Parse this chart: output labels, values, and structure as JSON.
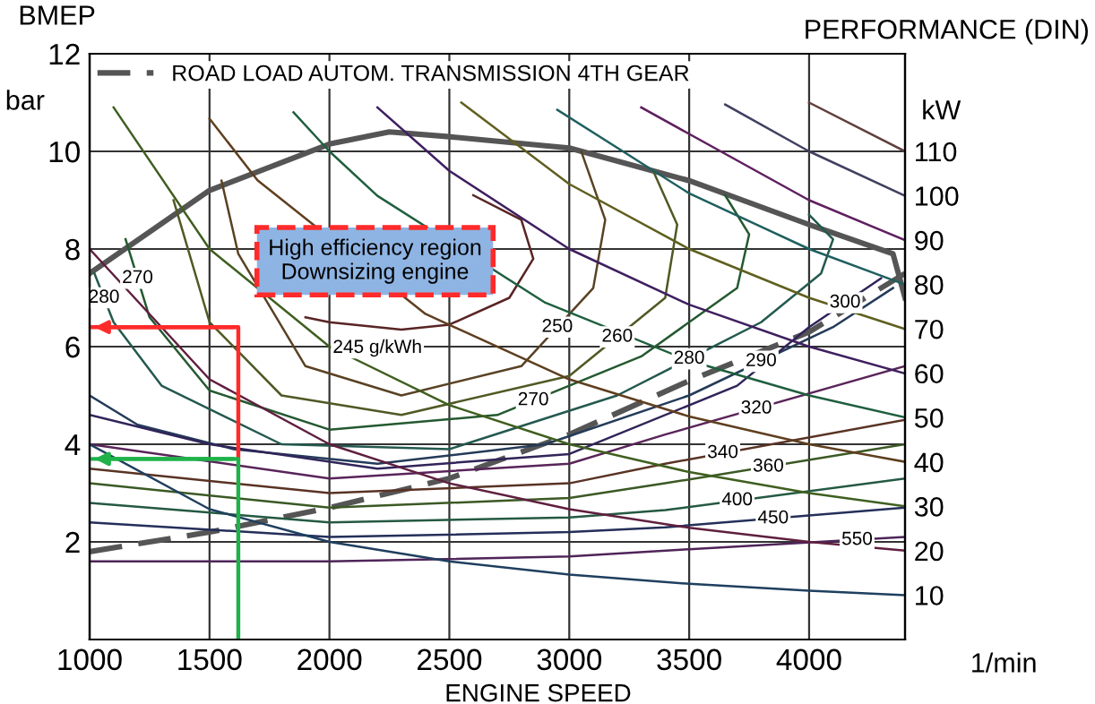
{
  "chart_data": {
    "type": "line",
    "xlabel": "ENGINE SPEED",
    "ylabel": "BMEP",
    "y2label": "PERFORMANCE (DIN)",
    "xlim": [
      1000,
      4400
    ],
    "xticks": [
      1000,
      1500,
      2000,
      2500,
      3000,
      3500,
      4000
    ],
    "ylim": [
      0,
      12
    ],
    "yticks": [
      2,
      4,
      6,
      8,
      10,
      12
    ],
    "y2lim": [
      0,
      132
    ],
    "y2ticks": [
      10,
      20,
      30,
      40,
      50,
      60,
      70,
      80,
      90,
      100,
      110
    ],
    "grid": true,
    "legend": "top left",
    "series": [
      {
        "color": "#555555",
        "x": [
          1000,
          1500,
          2000,
          2250,
          2500,
          3000,
          3500,
          4000,
          4350,
          4400
        ],
        "values": [
          7.5,
          9.2,
          10.15,
          10.4,
          10.3,
          10.07,
          9.4,
          8.5,
          7.9,
          7.0
        ]
      },
      {
        "name": "ROAD LOAD AUTOM. TRANSMISSION 4TH GEAR",
        "color": "#555555",
        "line_style": "dashed",
        "x": [
          1000,
          1500,
          2000,
          2500,
          3000,
          3500,
          4000,
          4400
        ],
        "values": [
          1.8,
          2.2,
          2.7,
          3.3,
          4.2,
          5.3,
          6.3,
          7.5
        ]
      },
      {
        "color": "#592424",
        "x": [
          2600,
          2800,
          2850,
          2750,
          2500,
          2300,
          2000,
          1900
        ],
        "values": [
          9.1,
          8.6,
          7.8,
          7.0,
          6.45,
          6.35,
          6.5,
          6.6
        ]
      },
      {
        "color": "#594224",
        "x": [
          1550,
          1620,
          1900,
          2300,
          2800,
          3100,
          3150,
          3050
        ],
        "values": [
          9.4,
          7.9,
          5.6,
          5.0,
          5.6,
          7.2,
          8.6,
          10.0
        ]
      },
      {
        "color": "#4f5924",
        "x": [
          1350,
          1500,
          1800,
          2300,
          3000,
          3400,
          3450,
          3350
        ],
        "values": [
          9.0,
          6.5,
          5.0,
          4.6,
          5.4,
          7.0,
          8.5,
          9.6
        ]
      },
      {
        "color": "#245930",
        "x": [
          1150,
          1250,
          1500,
          2000,
          2700,
          3300,
          3700,
          3750,
          3650
        ],
        "values": [
          8.2,
          6.6,
          5.1,
          4.3,
          4.6,
          5.8,
          7.2,
          8.3,
          9.1
        ]
      },
      {
        "color": "#24594f",
        "x": [
          1020,
          1100,
          1300,
          1800,
          2500,
          3200,
          3800,
          4050,
          4100,
          4000
        ],
        "values": [
          7.5,
          6.5,
          5.2,
          4.0,
          3.9,
          5.0,
          6.5,
          7.5,
          8.2,
          8.7
        ]
      },
      {
        "color": "#243b59",
        "x": [
          1000,
          1200,
          1600,
          2200,
          2900,
          3500,
          4100,
          4350
        ],
        "values": [
          5.0,
          4.4,
          3.9,
          3.6,
          4.0,
          5.0,
          6.4,
          7.2
        ]
      },
      {
        "color": "#302459",
        "x": [
          1000,
          1500,
          2200,
          3000,
          3700,
          4000,
          4300
        ],
        "values": [
          4.6,
          4.0,
          3.5,
          3.8,
          5.2,
          6.4,
          7.4
        ]
      },
      {
        "color": "#592459",
        "x": [
          1000,
          2000,
          3000,
          3400,
          4400
        ],
        "values": [
          4.0,
          3.3,
          3.6,
          4.2,
          5.6
        ]
      },
      {
        "color": "#593324",
        "x": [
          1000,
          2000,
          3000,
          3400,
          4400
        ],
        "values": [
          3.5,
          3.0,
          3.2,
          3.6,
          4.5
        ]
      },
      {
        "color": "#3b5924",
        "x": [
          1000,
          2000,
          3000,
          3400,
          4400
        ],
        "values": [
          3.2,
          2.7,
          2.9,
          3.2,
          4.0
        ]
      },
      {
        "color": "#245942",
        "x": [
          1000,
          2000,
          3000,
          3400,
          4400
        ],
        "values": [
          2.8,
          2.4,
          2.5,
          2.65,
          3.3
        ]
      },
      {
        "color": "#242f59",
        "x": [
          1000,
          2000,
          3000,
          3400,
          4400
        ],
        "values": [
          2.4,
          2.1,
          2.2,
          2.3,
          2.7
        ]
      },
      {
        "color": "#4f2459",
        "x": [
          1000,
          2000,
          3000,
          3500,
          4400
        ],
        "values": [
          1.6,
          1.6,
          1.7,
          1.85,
          2.1
        ]
      },
      {
        "color": "#1f3f5f",
        "x": [
          1000,
          1500,
          2000,
          2500,
          3000,
          3500,
          4000,
          4400
        ],
        "values": [
          4.0,
          2.67,
          2.0,
          1.6,
          1.33,
          1.14,
          1.0,
          0.91
        ]
      },
      {
        "color": "#5f1f3f",
        "x": [
          1000,
          1500,
          2000,
          2500,
          3000,
          3500,
          4000,
          4400
        ],
        "values": [
          8.0,
          5.33,
          4.0,
          3.2,
          2.67,
          2.29,
          2.0,
          1.82
        ]
      },
      {
        "color": "#3f5f1f",
        "x": [
          1100,
          1500,
          2000,
          2500,
          3000,
          3500,
          4000,
          4400
        ],
        "values": [
          10.9,
          8.0,
          6.0,
          4.8,
          4.0,
          3.43,
          3.0,
          2.73
        ]
      },
      {
        "color": "#5f3f1f",
        "x": [
          1500,
          1700,
          2400,
          3000,
          3500,
          4000,
          4400
        ],
        "values": [
          10.67,
          9.41,
          6.67,
          5.33,
          4.57,
          4.0,
          3.64
        ]
      },
      {
        "color": "#1f5f3f",
        "x": [
          1850,
          2000,
          2200,
          2900,
          3500,
          4000,
          4400
        ],
        "values": [
          10.8,
          10.0,
          9.09,
          6.9,
          5.71,
          5.0,
          4.55
        ]
      },
      {
        "color": "#3f1f5f",
        "x": [
          2200,
          2500,
          3000,
          3500,
          4000,
          4400
        ],
        "values": [
          10.9,
          9.6,
          8.0,
          6.86,
          6.0,
          5.45
        ]
      },
      {
        "color": "#5f5f1f",
        "x": [
          2550,
          3000,
          3500,
          4000,
          4400
        ],
        "values": [
          11.0,
          9.33,
          8.0,
          7.0,
          6.36
        ]
      },
      {
        "color": "#1f5f5f",
        "x": [
          2950,
          3500,
          4000,
          4400
        ],
        "values": [
          10.85,
          9.14,
          8.0,
          7.27
        ]
      },
      {
        "color": "#5f1f5f",
        "x": [
          3300,
          4000,
          4400
        ],
        "values": [
          10.9,
          9.0,
          8.18
        ]
      },
      {
        "color": "#404060",
        "x": [
          3650,
          4000,
          4400
        ],
        "values": [
          10.96,
          10.0,
          9.09
        ]
      },
      {
        "color": "#604040",
        "x": [
          4000,
          4400
        ],
        "values": [
          11.0,
          10.0
        ]
      },
      {
        "color": "#ff2a2a",
        "x": [
          1620,
          1620,
          1000
        ],
        "values": [
          3.7,
          6.4,
          6.4
        ]
      },
      {
        "color": "#1fb24a",
        "x": [
          1620,
          1620,
          1000
        ],
        "values": [
          0,
          3.7,
          3.7
        ]
      }
    ],
    "annotations": [
      "bar",
      "kW",
      "245 g/kWh",
      "1/min",
      {
        "text": "High efficiency region\nDownsizing engine",
        "x": 2190,
        "y": 7.75
      },
      {
        "text": "250",
        "x": 2950,
        "y": 6.4
      },
      {
        "text": "260",
        "x": 3200,
        "y": 6.2
      },
      {
        "text": "270",
        "x": 1200,
        "y": 7.4
      },
      {
        "text": "270",
        "x": 2850,
        "y": 4.9
      },
      {
        "text": "280",
        "x": 1060,
        "y": 7.0
      },
      {
        "text": "280",
        "x": 3500,
        "y": 5.75
      },
      {
        "text": "290",
        "x": 3800,
        "y": 5.7
      },
      {
        "text": "300",
        "x": 4150,
        "y": 6.9
      },
      {
        "text": "320",
        "x": 3780,
        "y": 4.73
      },
      {
        "text": "340",
        "x": 3640,
        "y": 3.82
      },
      {
        "text": "360",
        "x": 3830,
        "y": 3.54
      },
      {
        "text": "400",
        "x": 3700,
        "y": 2.85
      },
      {
        "text": "450",
        "x": 3850,
        "y": 2.48
      },
      {
        "text": "550",
        "x": 4200,
        "y": 2.04
      }
    ]
  }
}
